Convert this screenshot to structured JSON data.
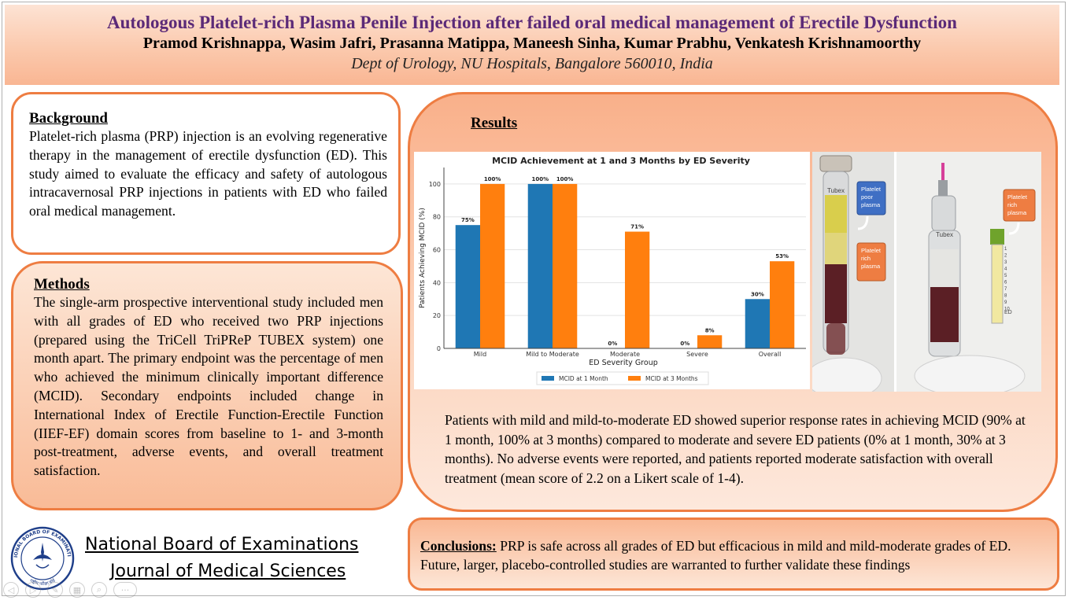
{
  "header": {
    "title": "Autologous Platelet-rich Plasma Penile Injection after failed oral medical management of Erectile Dysfunction",
    "authors": "Pramod Krishnappa, Wasim Jafri, Prasanna Matippa, Maneesh Sinha, Kumar Prabhu, Venkatesh Krishnamoorthy",
    "affiliation": "Dept of Urology, NU Hospitals, Bangalore 560010, India"
  },
  "background": {
    "heading": "Background",
    "text": "Platelet-rich plasma (PRP) injection is an evolving regenerative therapy in the management of erectile dysfunction (ED). This study aimed to evaluate the efficacy and safety of autologous intracavernosal PRP injections in patients with ED who failed oral medical management."
  },
  "methods": {
    "heading": "Methods",
    "text": "The single-arm prospective interventional study included men with all grades of ED who received two PRP injections (prepared using the TriCell TriPReP TUBEX system) one month apart. The primary endpoint was the percentage of men who achieved the minimum clinically important difference (MCID). Secondary endpoints included change in International Index of Erectile Function-Erectile Function (IIEF-EF) domain scores from baseline to 1- and 3-month post-treatment, adverse events, and overall treatment satisfaction."
  },
  "results": {
    "heading": "Results",
    "text": "Patients with mild and mild-to-moderate ED showed superior response rates in achieving MCID (90% at 1 month, 100% at 3 months) compared to moderate and severe ED patients (0% at 1 month, 30% at 3 months). No adverse events were reported, and patients reported moderate satisfaction with overall treatment (mean score of 2.2 on a Likert scale of 1-4)."
  },
  "chart_data": {
    "type": "bar",
    "title": "MCID Achievement at 1 and 3 Months by ED Severity",
    "xlabel": "ED Severity Group",
    "ylabel": "Patients Achieving MCID (%)",
    "categories": [
      "Mild",
      "Mild to Moderate",
      "Moderate",
      "Severe",
      "Overall"
    ],
    "series": [
      {
        "name": "MCID at 1 Month",
        "values": [
          75,
          100,
          0,
          0,
          30
        ],
        "labels": [
          "75%",
          "100%",
          "0%",
          "0%",
          "30%"
        ],
        "color": "#1f77b4"
      },
      {
        "name": "MCID at 3 Months",
        "values": [
          100,
          100,
          71,
          8,
          53
        ],
        "labels": [
          "100%",
          "100%",
          "71%",
          "8%",
          "53%"
        ],
        "color": "#ff7f0e"
      }
    ],
    "ylim": [
      0,
      110
    ],
    "yticks": [
      0,
      20,
      40,
      60,
      80,
      100
    ],
    "grid": true,
    "legend": "bottom-center"
  },
  "photo": {
    "label_ppp": "Platelet poor plasma",
    "label_prp_left": "Platelet rich plasma",
    "label_prp_right": "Platelet rich plasma",
    "tube_text": "Tubex",
    "syringe_marks": [
      "1",
      "2",
      "3",
      "4",
      "5",
      "6",
      "7",
      "8",
      "9",
      "10"
    ],
    "syringe_unit": "ED"
  },
  "conclusions": {
    "lead": "Conclusions:",
    "text": " PRP is safe across all grades of ED but efficacious in mild and mild-moderate grades of ED. Future, larger, placebo-controlled studies are warranted to further validate these findings"
  },
  "footer": {
    "line1": "National Board of Examinations",
    "line2": "Journal of Medical Sciences",
    "logo_text_top": "NATIONAL BOARD OF EXAMINATIONS",
    "logo_text_bottom": "राष्ट्रीय परीक्षा बोर्ड"
  },
  "toolbar": {
    "icons": [
      "previous-icon",
      "next-icon",
      "pen-icon",
      "slides-icon",
      "zoom-icon",
      "more-icon"
    ]
  }
}
